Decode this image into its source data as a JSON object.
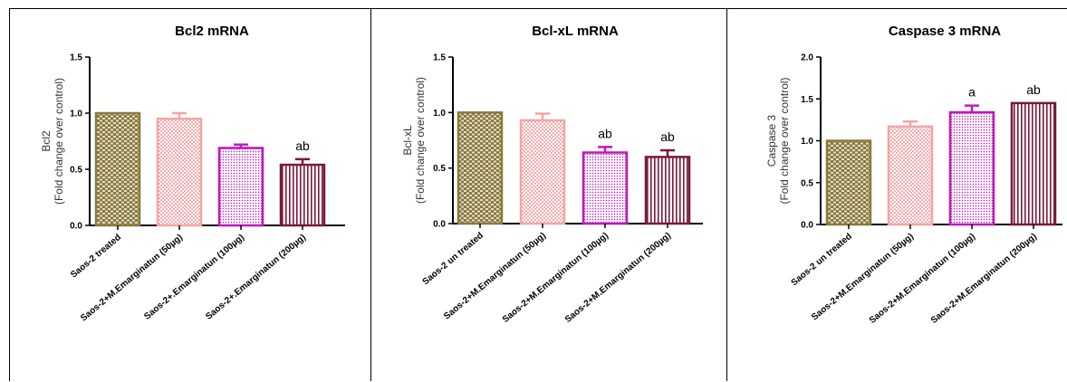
{
  "chart_data": [
    {
      "type": "bar",
      "title": "Bcl2 mRNA",
      "ylabel": "Bcl2",
      "ylabel2": "(Fold change over control)",
      "ylim": [
        0,
        1.5
      ],
      "yticks": [
        "0.0",
        "0.5",
        "1.0",
        "1.5"
      ],
      "categories": [
        "Saos-2 treated",
        "Saos-2+M.Emarginatun (50µg)",
        "Saos-2+.Emarginatun (100µg)",
        "Saos-2+.Emarginatun (200µg)"
      ],
      "values": [
        1.0,
        0.95,
        0.69,
        0.54
      ],
      "errors": [
        0.0,
        0.05,
        0.03,
        0.05
      ],
      "annotations": [
        "",
        "",
        "",
        "ab"
      ],
      "colors": [
        "#8a7a3c",
        "#f4a5a5",
        "#c019c0",
        "#7a1a3a"
      ]
    },
    {
      "type": "bar",
      "title": "Bcl-xL mRNA",
      "ylabel": "Bcl-xL",
      "ylabel2": "(Fold change over control)",
      "ylim": [
        0,
        1.5
      ],
      "yticks": [
        "0.0",
        "0.5",
        "1.0",
        "1.5"
      ],
      "categories": [
        "Saos-2 un treated",
        "Saos-2+M.Emarginatun (50µg)",
        "Saos-2+M.Emarginatun (100µg)",
        "Saos-2+M.Emarginatun (200µg)"
      ],
      "values": [
        1.0,
        0.93,
        0.64,
        0.6
      ],
      "errors": [
        0.0,
        0.06,
        0.05,
        0.06
      ],
      "annotations": [
        "",
        "",
        "ab",
        "ab"
      ],
      "colors": [
        "#8a7a3c",
        "#f4a5a5",
        "#c019c0",
        "#7a1a3a"
      ]
    },
    {
      "type": "bar",
      "title": "Caspase 3 mRNA",
      "ylabel": "Caspase 3",
      "ylabel2": "(Fold change over control)",
      "ylim": [
        0,
        2.0
      ],
      "yticks": [
        "0.0",
        "0.5",
        "1.0",
        "1.5",
        "2.0"
      ],
      "categories": [
        "Saos-2 un treated",
        "Saos-2+M.Emarginatun (50µg)",
        "Saos-2+M.Emarginatun (100µg)",
        "Saos-2+M.Emarginatun (200µg)"
      ],
      "values": [
        1.0,
        1.17,
        1.34,
        1.45
      ],
      "errors": [
        0.0,
        0.06,
        0.08,
        0.0
      ],
      "annotations": [
        "",
        "",
        "a",
        "ab"
      ],
      "colors": [
        "#8a7a3c",
        "#f4a5a5",
        "#c019c0",
        "#7a1a3a"
      ]
    }
  ]
}
